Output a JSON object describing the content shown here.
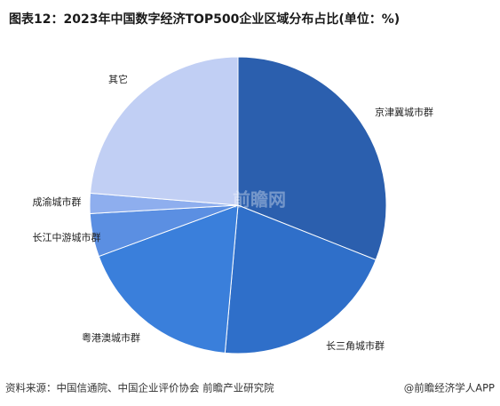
{
  "chart_data": {
    "type": "pie",
    "title": "图表12：2023年中国数字经济TOP500企业区域分布占比(单位：%)",
    "categories": [
      "京津冀城市群",
      "长三角城市群",
      "粤港澳城市群",
      "长江中游城市群",
      "成渝城市群",
      "其它"
    ],
    "values": [
      31,
      20.4,
      18,
      4.7,
      2.2,
      23.7
    ],
    "colors": [
      "#2b5fae",
      "#2f6fc9",
      "#3a7fdb",
      "#5b8fe2",
      "#8eaeee",
      "#c1cff4"
    ],
    "source": "资料来源：中国信通院、中国企业评价协会 前瞻产业研究院",
    "credit": "@前瞻经济学人APP",
    "watermark": "前瞻网"
  }
}
